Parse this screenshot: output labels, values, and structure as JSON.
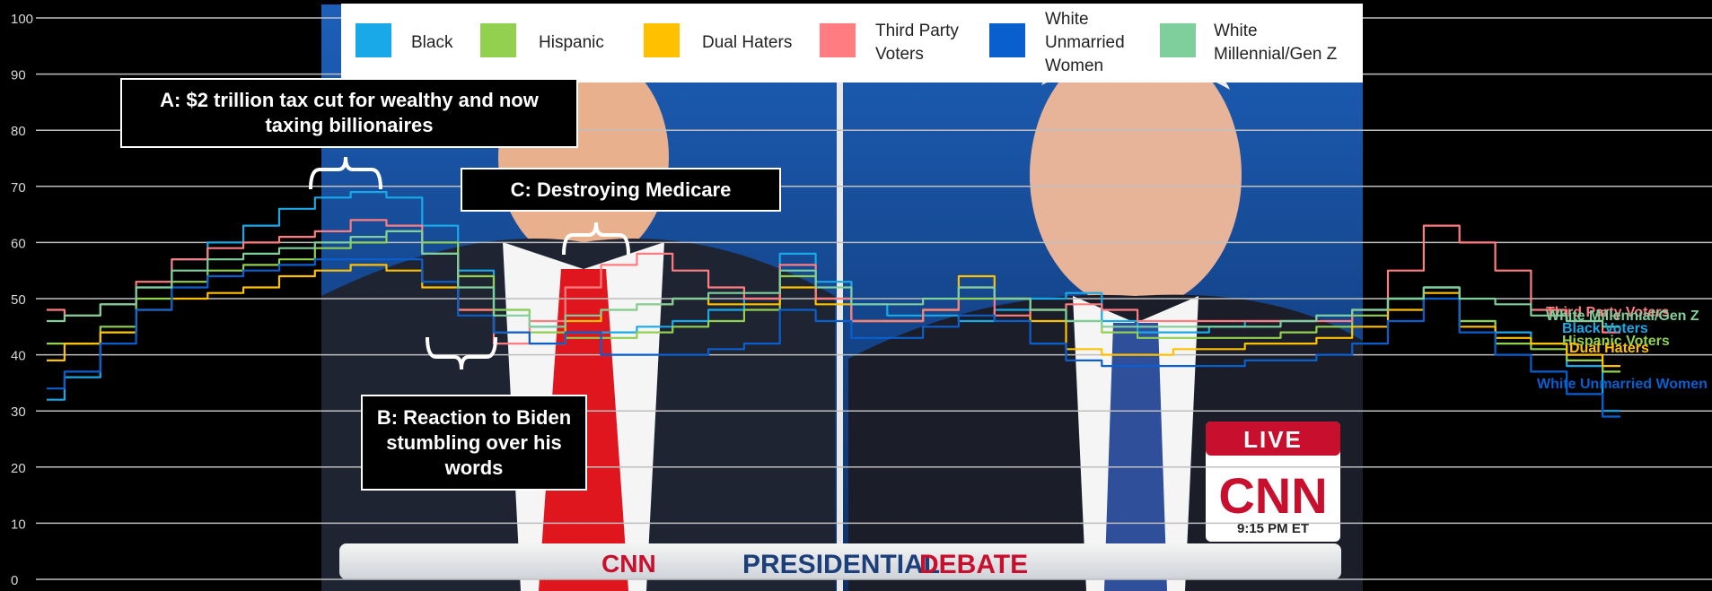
{
  "chart_data": {
    "type": "line",
    "ylim": [
      0,
      100
    ],
    "yticks": [
      0,
      10,
      20,
      30,
      40,
      50,
      60,
      70,
      80,
      90,
      100
    ],
    "grid": true,
    "legend_position": "top",
    "series": [
      {
        "name": "Black",
        "color": "#19a9e8",
        "values": [
          32,
          36,
          44,
          52,
          57,
          60,
          63,
          66,
          68,
          69,
          68,
          63,
          55,
          48,
          45,
          44,
          44,
          45,
          46,
          48,
          50,
          58,
          53,
          49,
          47,
          47,
          46,
          48,
          50,
          51,
          46,
          44,
          44,
          45,
          46,
          46,
          47,
          48,
          50,
          52,
          46,
          44,
          42,
          38,
          30
        ]
      },
      {
        "name": "Hispanic",
        "color": "#92d050",
        "values": [
          42,
          42,
          45,
          50,
          53,
          55,
          56,
          57,
          59,
          60,
          62,
          60,
          54,
          48,
          44,
          43,
          43,
          44,
          45,
          46,
          48,
          54,
          50,
          46,
          46,
          48,
          50,
          50,
          48,
          46,
          44,
          43,
          43,
          43,
          43,
          44,
          45,
          47,
          50,
          52,
          46,
          42,
          41,
          39,
          37
        ]
      },
      {
        "name": "Dual Haters",
        "color": "#ffc000",
        "values": [
          39,
          42,
          44,
          48,
          50,
          51,
          52,
          54,
          55,
          56,
          55,
          52,
          48,
          44,
          42,
          46,
          48,
          49,
          50,
          49,
          49,
          52,
          49,
          46,
          46,
          48,
          54,
          50,
          46,
          41,
          40,
          40,
          41,
          41,
          42,
          42,
          43,
          45,
          48,
          51,
          45,
          43,
          42,
          40,
          38
        ]
      },
      {
        "name": "Third Party Voters",
        "color": "#ff7c80",
        "values": [
          48,
          47,
          49,
          53,
          57,
          59,
          60,
          61,
          62,
          64,
          63,
          58,
          48,
          42,
          46,
          52,
          56,
          58,
          55,
          52,
          50,
          56,
          50,
          46,
          46,
          48,
          52,
          47,
          48,
          49,
          48,
          46,
          46,
          46,
          46,
          46,
          46,
          48,
          55,
          63,
          60,
          55,
          48,
          46,
          44
        ]
      },
      {
        "name": "White Unmarried Women",
        "color": "#0a5fcf",
        "values": [
          34,
          37,
          42,
          48,
          52,
          54,
          55,
          56,
          57,
          57,
          57,
          53,
          47,
          44,
          42,
          44,
          40,
          40,
          40,
          41,
          42,
          48,
          46,
          43,
          43,
          45,
          47,
          46,
          42,
          39,
          38,
          38,
          38,
          38,
          39,
          39,
          40,
          42,
          46,
          50,
          44,
          40,
          37,
          33,
          29
        ]
      },
      {
        "name": "White Millennial/Gen Z",
        "color": "#7fcf9c",
        "values": [
          46,
          47,
          49,
          52,
          55,
          57,
          58,
          59,
          60,
          61,
          62,
          58,
          52,
          47,
          45,
          47,
          48,
          49,
          50,
          51,
          51,
          55,
          52,
          49,
          49,
          50,
          52,
          50,
          48,
          46,
          45,
          45,
          45,
          45,
          45,
          46,
          47,
          48,
          50,
          52,
          50,
          49,
          47,
          46,
          45
        ]
      }
    ],
    "annotations": [
      {
        "label": "A: $2 trillion tax cut for wealthy and now taxing billionaires"
      },
      {
        "label": "B: Reaction to Biden stumbling over his words"
      },
      {
        "label": "C: Destroying Medicare"
      }
    ],
    "end_labels": [
      {
        "text": "Third Party Voters",
        "color": "#ff7c80"
      },
      {
        "text": "White Millennial/Gen Z",
        "color": "#7fcf9c"
      },
      {
        "text": "Black Voters",
        "color": "#19a9e8"
      },
      {
        "text": "Hispanic Voters",
        "color": "#92d050"
      },
      {
        "text": "Dual Haters",
        "color": "#ffc000"
      },
      {
        "text": "White Unmarried Women",
        "color": "#0a5fcf"
      }
    ]
  },
  "legend": [
    {
      "label": "Black",
      "color": "#19a9e8"
    },
    {
      "label": "Hispanic",
      "color": "#92d050"
    },
    {
      "label": "Dual Haters",
      "color": "#ffc000"
    },
    {
      "label": "Third Party Voters",
      "lines": [
        "Third Party",
        "Voters"
      ],
      "color": "#ff7c80"
    },
    {
      "label": "White Unmarried Women",
      "lines": [
        "White",
        "Unmarried",
        "Women"
      ],
      "color": "#0a5fcf"
    },
    {
      "label": "White Millennial/Gen Z",
      "lines": [
        "White",
        "Millennial/Gen Z"
      ],
      "color": "#7fcf9c"
    }
  ],
  "broadcast": {
    "live_label": "LIVE",
    "network": "CNN",
    "time": "9:15 PM ET",
    "banner_network": "CNN",
    "banner_word1": "PRESIDENTIAL",
    "banner_word2": "DEBATE"
  }
}
